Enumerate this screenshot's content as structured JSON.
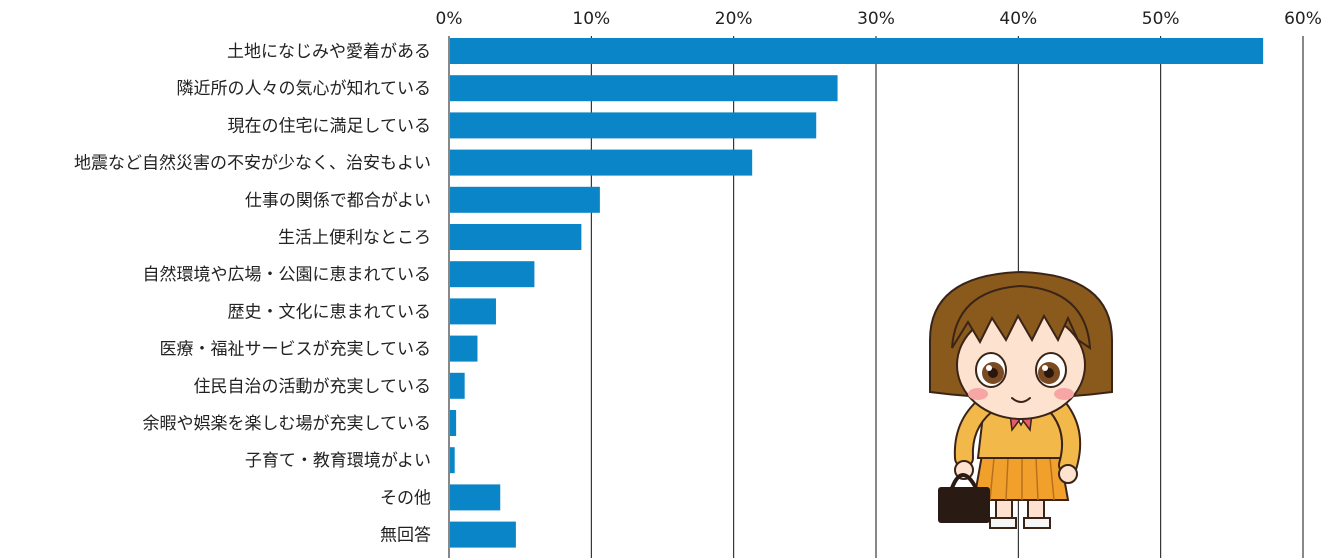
{
  "chart_data": {
    "type": "bar",
    "orientation": "horizontal",
    "xlim": [
      0,
      60
    ],
    "xticks": [
      0,
      10,
      20,
      30,
      40,
      50,
      60
    ],
    "xtick_labels": [
      "0%",
      "10%",
      "20%",
      "30%",
      "40%",
      "50%",
      "60%"
    ],
    "x_axis_position": "top",
    "grid": "vertical lines",
    "bar_color": "#0a86c8",
    "categories": [
      "土地になじみや愛着がある",
      "隣近所の人々の気心が知れている",
      "現在の住宅に満足している",
      "地震など自然災害の不安が少なく、治安もよい",
      "仕事の関係で都合がよい",
      "生活上便利なところ",
      "自然環境や広場・公園に恵まれている",
      "歴史・文化に恵まれている",
      "医療・福祉サービスが充実している",
      "住民自治の活動が充実している",
      "余暇や娯楽を楽しむ場が充実している",
      "子育て・教育環境がよい",
      "その他",
      "無回答"
    ],
    "values": [
      57.2,
      27.3,
      25.8,
      21.3,
      10.6,
      9.3,
      6.0,
      3.3,
      2.0,
      1.1,
      0.5,
      0.4,
      3.6,
      4.7
    ]
  },
  "decor": {
    "mascot": "schoolgirl-mascot-with-bag",
    "colors": {
      "hair": "#8a5a1c",
      "jacket": "#f3b84a",
      "skirt": "#f2a02c",
      "ribbon": "#e85c6a",
      "bag": "#2a1a14",
      "skin": "#fde3cf"
    }
  }
}
